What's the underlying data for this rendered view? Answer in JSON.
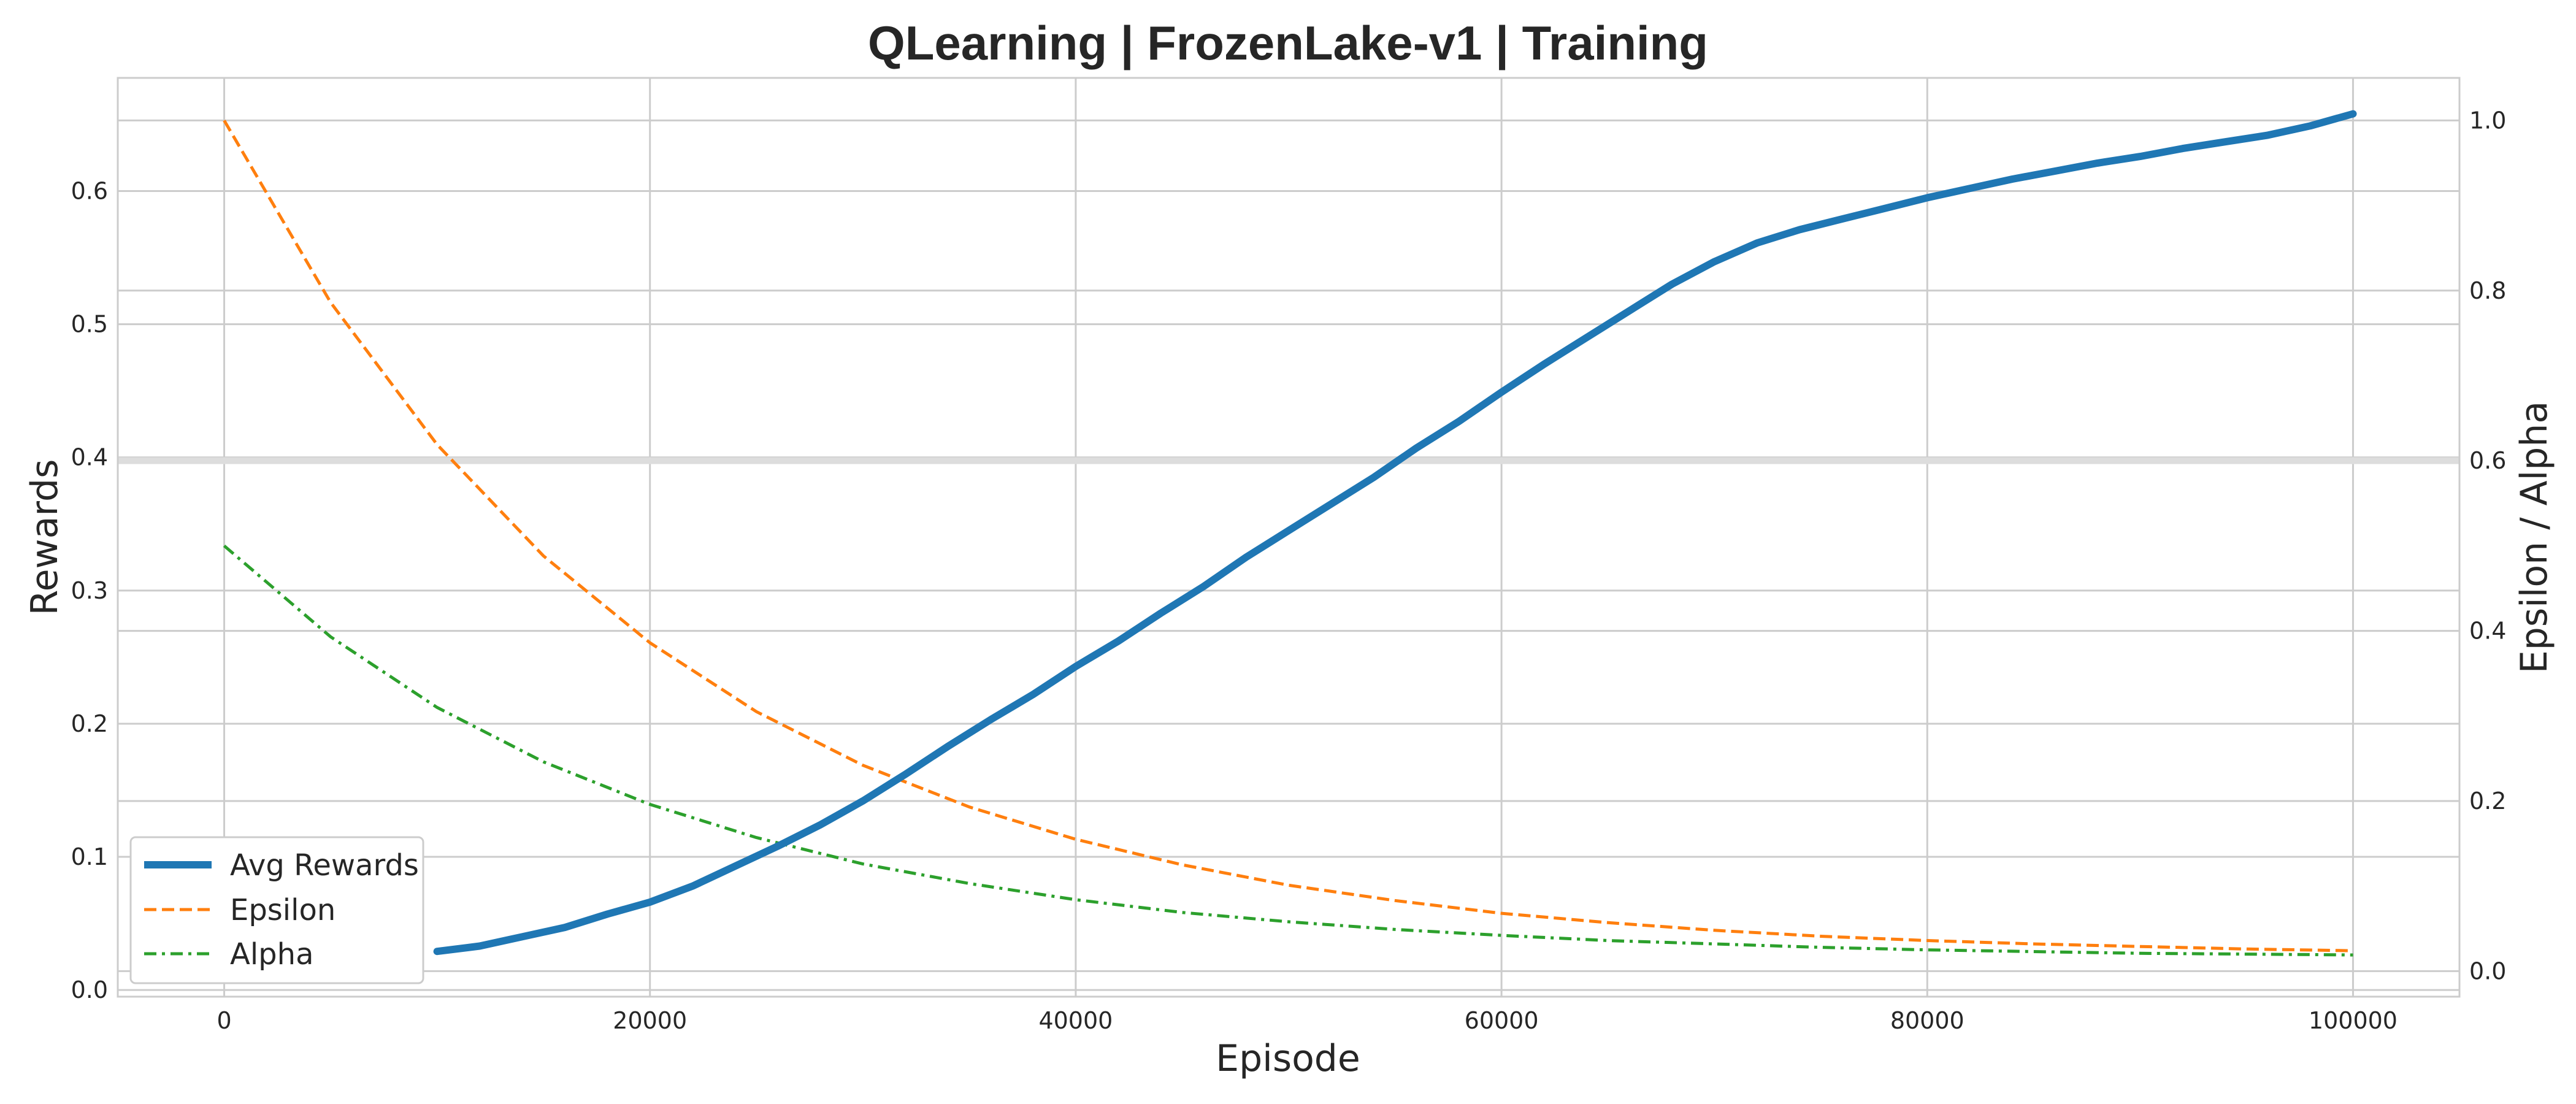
{
  "chart_data": {
    "type": "line",
    "title": "QLearning | FrozenLake-v1 | Training",
    "xlabel": "Episode",
    "ylabel": "Rewards",
    "y2label": "Epsilon / Alpha",
    "xlim": [
      -5000,
      105000
    ],
    "ylim": [
      -0.005,
      0.685
    ],
    "y2lim": [
      -0.03,
      1.05
    ],
    "xticks": [
      0,
      20000,
      40000,
      60000,
      80000,
      100000
    ],
    "yticks": [
      0.0,
      0.1,
      0.2,
      0.3,
      0.4,
      0.5,
      0.6
    ],
    "y2ticks": [
      0.0,
      0.2,
      0.4,
      0.6,
      0.8,
      1.0
    ],
    "grid": true,
    "legend_position": "bottom-left",
    "series": [
      {
        "name": "Avg Rewards",
        "axis": "left",
        "style": "solid",
        "color": "#1f77b4",
        "x": [
          10000,
          12000,
          14000,
          16000,
          18000,
          20000,
          22000,
          24000,
          26000,
          28000,
          30000,
          32000,
          34000,
          36000,
          38000,
          40000,
          42000,
          44000,
          46000,
          48000,
          50000,
          52000,
          54000,
          56000,
          58000,
          60000,
          62000,
          64000,
          66000,
          68000,
          70000,
          72000,
          74000,
          76000,
          78000,
          80000,
          82000,
          84000,
          86000,
          88000,
          90000,
          92000,
          94000,
          96000,
          98000,
          100000
        ],
        "values": [
          0.029,
          0.033,
          0.04,
          0.047,
          0.057,
          0.066,
          0.078,
          0.093,
          0.108,
          0.124,
          0.142,
          0.162,
          0.183,
          0.203,
          0.222,
          0.243,
          0.262,
          0.283,
          0.303,
          0.325,
          0.345,
          0.365,
          0.385,
          0.407,
          0.427,
          0.449,
          0.47,
          0.49,
          0.51,
          0.53,
          0.547,
          0.561,
          0.571,
          0.579,
          0.587,
          0.595,
          0.602,
          0.609,
          0.615,
          0.621,
          0.626,
          0.632,
          0.637,
          0.642,
          0.649,
          0.658
        ]
      },
      {
        "name": "Epsilon",
        "axis": "right",
        "style": "dashed",
        "color": "#ff7f0e",
        "x": [
          0,
          5000,
          10000,
          15000,
          20000,
          25000,
          30000,
          35000,
          40000,
          45000,
          50000,
          55000,
          60000,
          65000,
          70000,
          75000,
          80000,
          85000,
          90000,
          95000,
          100000
        ],
        "values": [
          1.0,
          0.786,
          0.619,
          0.488,
          0.386,
          0.305,
          0.242,
          0.193,
          0.155,
          0.125,
          0.101,
          0.083,
          0.068,
          0.057,
          0.048,
          0.041,
          0.036,
          0.032,
          0.029,
          0.026,
          0.024
        ]
      },
      {
        "name": "Alpha",
        "axis": "right",
        "style": "dashdot",
        "color": "#2ca02c",
        "x": [
          0,
          5000,
          10000,
          15000,
          20000,
          25000,
          30000,
          35000,
          40000,
          45000,
          50000,
          55000,
          60000,
          65000,
          70000,
          75000,
          80000,
          85000,
          90000,
          95000,
          100000
        ],
        "values": [
          0.5,
          0.393,
          0.31,
          0.246,
          0.196,
          0.157,
          0.126,
          0.103,
          0.084,
          0.069,
          0.058,
          0.049,
          0.042,
          0.036,
          0.032,
          0.028,
          0.025,
          0.023,
          0.021,
          0.02,
          0.019
        ]
      }
    ]
  }
}
